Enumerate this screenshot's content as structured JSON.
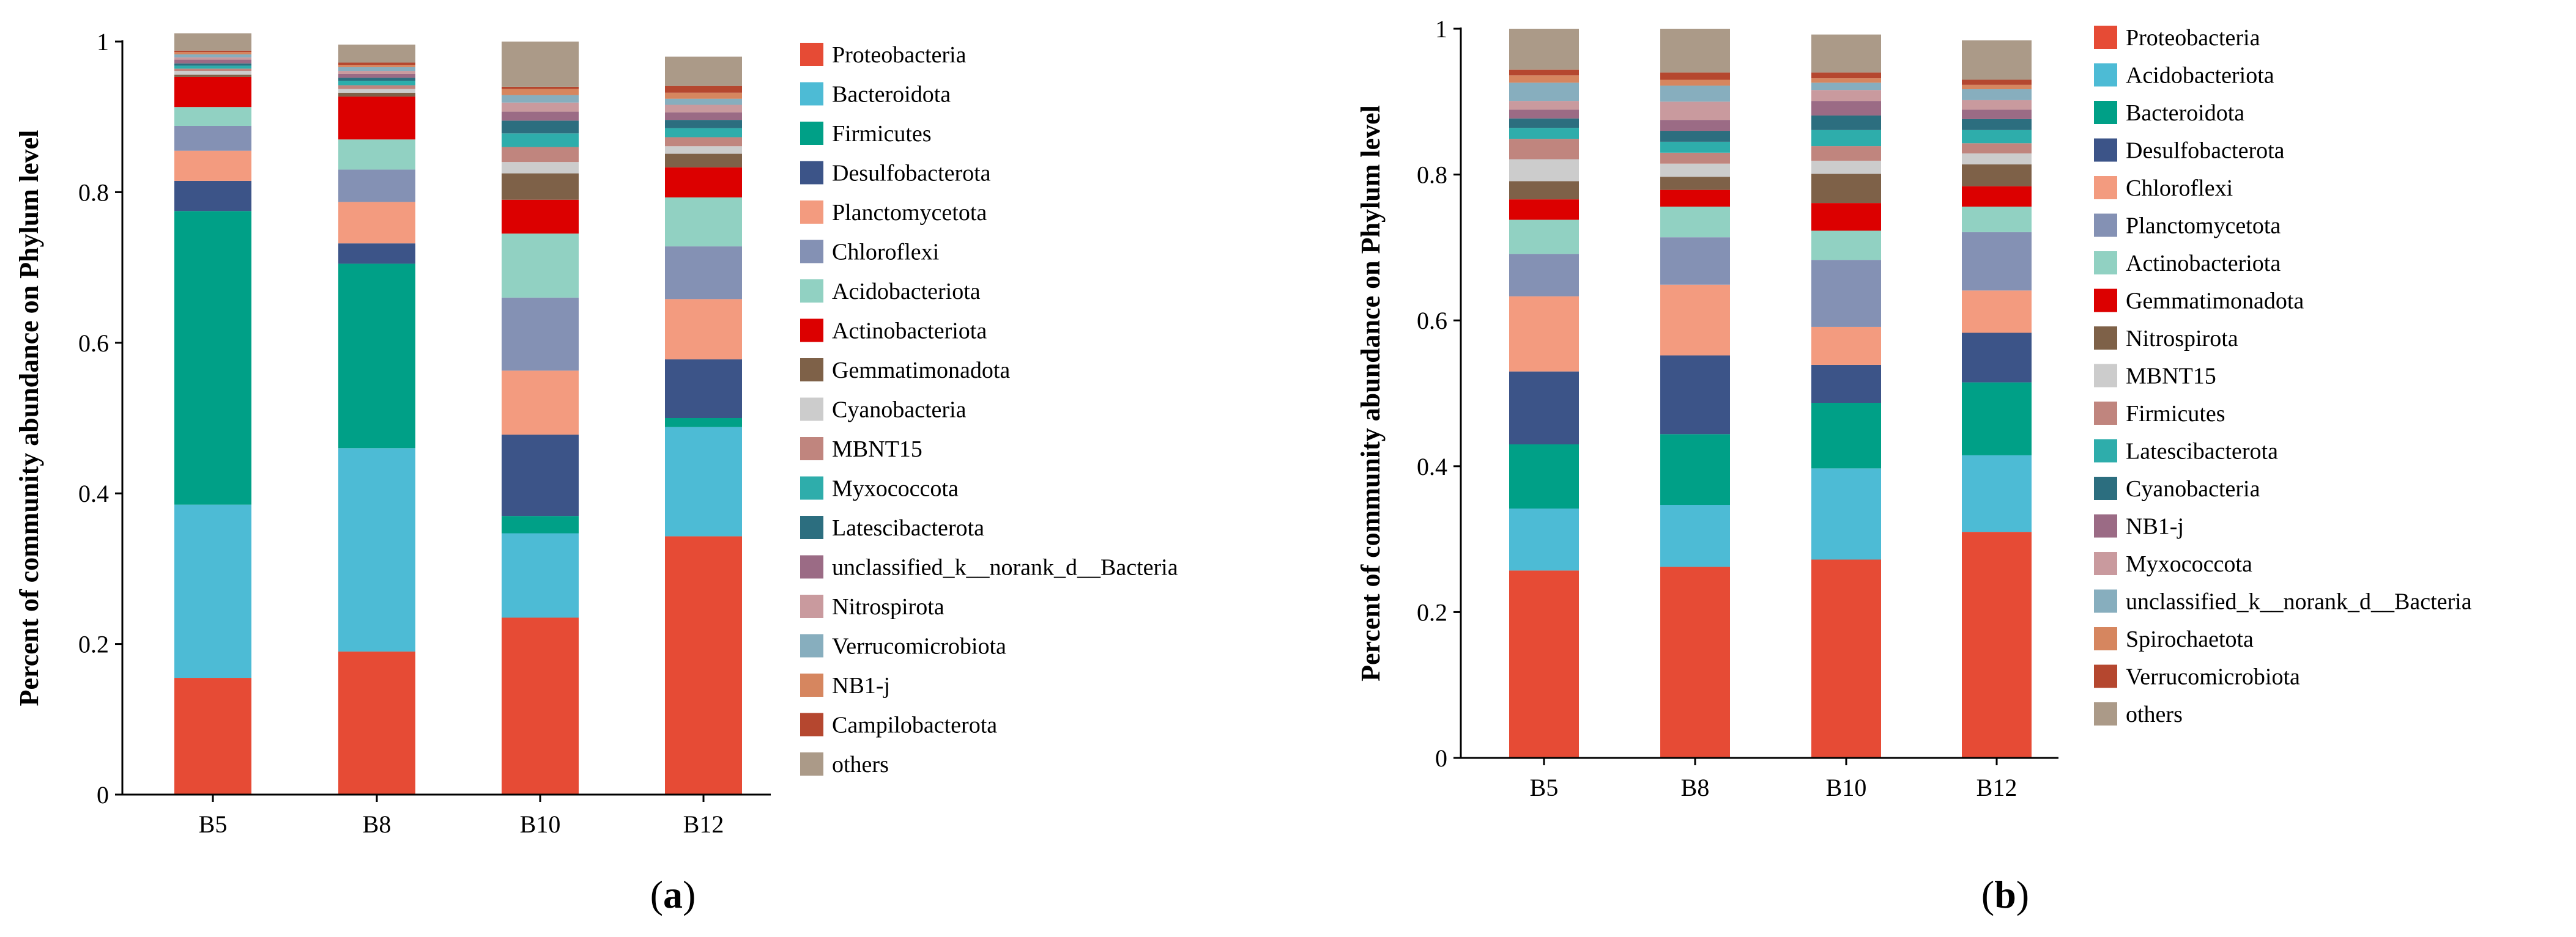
{
  "panels": [
    {
      "label": "a",
      "chart_data": {
        "type": "stacked-bar",
        "ylabel": "Percent of community abundance on Phylum level",
        "xlabel": "",
        "ylim": [
          0,
          1
        ],
        "yticks": [
          "0",
          "0.2",
          "0.4",
          "0.6",
          "0.8",
          "1"
        ],
        "categories": [
          "B5",
          "B8",
          "B10",
          "B12"
        ],
        "legend_position": "right",
        "series": [
          {
            "name": "Proteobacteria",
            "color": "#e64b35",
            "values": [
              0.155,
              0.19,
              0.235,
              0.343
            ]
          },
          {
            "name": "Bacteroidota",
            "color": "#4dbbd5",
            "values": [
              0.23,
              0.27,
              0.112,
              0.145
            ]
          },
          {
            "name": "Firmicutes",
            "color": "#00a087",
            "values": [
              0.39,
              0.245,
              0.023,
              0.012
            ]
          },
          {
            "name": "Desulfobacterota",
            "color": "#3c5488",
            "values": [
              0.04,
              0.027,
              0.108,
              0.078
            ]
          },
          {
            "name": "Planctomycetota",
            "color": "#f39b7f",
            "values": [
              0.04,
              0.055,
              0.085,
              0.08
            ]
          },
          {
            "name": "Chloroflexi",
            "color": "#8491b4",
            "values": [
              0.033,
              0.043,
              0.097,
              0.07
            ]
          },
          {
            "name": "Acidobacteriota",
            "color": "#91d1c2",
            "values": [
              0.025,
              0.04,
              0.085,
              0.065
            ]
          },
          {
            "name": "Actinobacteriota",
            "color": "#dc0000",
            "values": [
              0.04,
              0.057,
              0.045,
              0.04
            ]
          },
          {
            "name": "Gemmatimonadota",
            "color": "#7e6148",
            "values": [
              0.003,
              0.005,
              0.035,
              0.018
            ]
          },
          {
            "name": "Cyanobacteria",
            "color": "#cccccc",
            "values": [
              0.005,
              0.005,
              0.015,
              0.01
            ]
          },
          {
            "name": "MBNT15",
            "color": "#c0857e",
            "values": [
              0.003,
              0.005,
              0.02,
              0.012
            ]
          },
          {
            "name": "Myxococcota",
            "color": "#2eadab",
            "values": [
              0.004,
              0.006,
              0.018,
              0.012
            ]
          },
          {
            "name": "Latescibacterota",
            "color": "#2c6e7f",
            "values": [
              0.003,
              0.004,
              0.017,
              0.011
            ]
          },
          {
            "name": "unclassified_k__norank_d__Bacteria",
            "color": "#9b6b85",
            "values": [
              0.005,
              0.005,
              0.012,
              0.01
            ]
          },
          {
            "name": "Nitrospirota",
            "color": "#c99a9e",
            "values": [
              0.003,
              0.004,
              0.012,
              0.01
            ]
          },
          {
            "name": "Verrucomicrobiota",
            "color": "#87aebe",
            "values": [
              0.004,
              0.005,
              0.01,
              0.008
            ]
          },
          {
            "name": "NB1-j",
            "color": "#d6865f",
            "values": [
              0.003,
              0.003,
              0.008,
              0.008
            ]
          },
          {
            "name": "Campilobacterota",
            "color": "#b5472f",
            "values": [
              0.002,
              0.003,
              0.003,
              0.009
            ]
          },
          {
            "name": "others",
            "color": "#ab9a88",
            "values": [
              0.023,
              0.024,
              0.06,
              0.039
            ]
          }
        ]
      }
    },
    {
      "label": "b",
      "chart_data": {
        "type": "stacked-bar",
        "ylabel": "Percent of community abundance on Phylum level",
        "xlabel": "",
        "ylim": [
          0,
          1
        ],
        "yticks": [
          "0",
          "0.2",
          "0.4",
          "0.6",
          "0.8",
          "1"
        ],
        "categories": [
          "B5",
          "B8",
          "B10",
          "B12"
        ],
        "legend_position": "right",
        "series": [
          {
            "name": "Proteobacteria",
            "color": "#e64b35",
            "values": [
              0.257,
              0.262,
              0.272,
              0.31
            ]
          },
          {
            "name": "Acidobacteriota",
            "color": "#4dbbd5",
            "values": [
              0.085,
              0.085,
              0.125,
              0.105
            ]
          },
          {
            "name": "Bacteroidota",
            "color": "#00a087",
            "values": [
              0.088,
              0.097,
              0.09,
              0.1
            ]
          },
          {
            "name": "Desulfobacterota",
            "color": "#3c5488",
            "values": [
              0.1,
              0.108,
              0.052,
              0.068
            ]
          },
          {
            "name": "Chloroflexi",
            "color": "#f39b7f",
            "values": [
              0.103,
              0.097,
              0.052,
              0.058
            ]
          },
          {
            "name": "Planctomycetota",
            "color": "#8491b4",
            "values": [
              0.058,
              0.065,
              0.092,
              0.08
            ]
          },
          {
            "name": "Actinobacteriota",
            "color": "#91d1c2",
            "values": [
              0.047,
              0.042,
              0.04,
              0.035
            ]
          },
          {
            "name": "Gemmatimonadota",
            "color": "#dc0000",
            "values": [
              0.028,
              0.023,
              0.038,
              0.028
            ]
          },
          {
            "name": "Nitrospirota",
            "color": "#7e6148",
            "values": [
              0.025,
              0.018,
              0.04,
              0.03
            ]
          },
          {
            "name": "MBNT15",
            "color": "#cccccc",
            "values": [
              0.03,
              0.018,
              0.018,
              0.015
            ]
          },
          {
            "name": "Firmicutes",
            "color": "#c0857e",
            "values": [
              0.028,
              0.015,
              0.02,
              0.014
            ]
          },
          {
            "name": "Latescibacterota",
            "color": "#2eadab",
            "values": [
              0.015,
              0.015,
              0.022,
              0.018
            ]
          },
          {
            "name": "Cyanobacteria",
            "color": "#2c6e7f",
            "values": [
              0.013,
              0.015,
              0.02,
              0.015
            ]
          },
          {
            "name": "NB1-j",
            "color": "#9b6b85",
            "values": [
              0.012,
              0.015,
              0.02,
              0.013
            ]
          },
          {
            "name": "Myxococcota",
            "color": "#c99a9e",
            "values": [
              0.012,
              0.025,
              0.015,
              0.013
            ]
          },
          {
            "name": "unclassified_k__norank_d__Bacteria",
            "color": "#87aebe",
            "values": [
              0.025,
              0.022,
              0.01,
              0.015
            ]
          },
          {
            "name": "Spirochaetota",
            "color": "#d6865f",
            "values": [
              0.01,
              0.008,
              0.006,
              0.006
            ]
          },
          {
            "name": "Verrucomicrobiota",
            "color": "#b5472f",
            "values": [
              0.008,
              0.01,
              0.008,
              0.007
            ]
          },
          {
            "name": "others",
            "color": "#ab9a88",
            "values": [
              0.056,
              0.06,
              0.052,
              0.054
            ]
          }
        ]
      }
    }
  ]
}
